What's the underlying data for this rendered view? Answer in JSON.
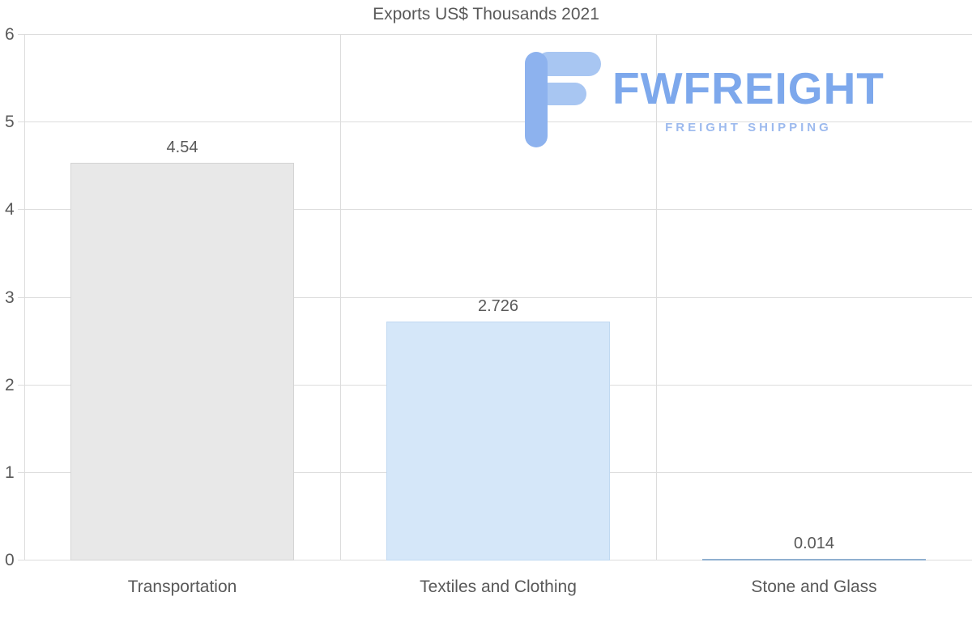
{
  "chart_data": {
    "type": "bar",
    "title": "Exports US$ Thousands 2021",
    "categories": [
      "Transportation",
      "Textiles and Clothing",
      "Stone and Glass"
    ],
    "values": [
      4.54,
      2.726,
      0.014
    ],
    "value_labels": [
      "4.54",
      "2.726",
      "0.014"
    ],
    "ylim": [
      0,
      6
    ],
    "yticks": [
      0,
      1,
      2,
      3,
      4,
      5,
      6
    ],
    "grid": true,
    "legend": "none",
    "bar_colors": [
      "#e8e8e8",
      "#d5e7f9",
      "#aac7e2"
    ],
    "bar_border_colors": [
      "#d4d4d4",
      "#c1d9f1",
      "#8fb0d0"
    ]
  },
  "watermark": {
    "brand": "FWFREIGHT",
    "tagline": "FREIGHT SHIPPING"
  },
  "colors": {
    "grid": "#dcdcdc",
    "text": "#595959",
    "brand_blue": "#7da8ec",
    "tagline_blue": "#9dbaee",
    "icon_blue_light": "#a8c6f2",
    "icon_blue": "#8db2ee"
  }
}
